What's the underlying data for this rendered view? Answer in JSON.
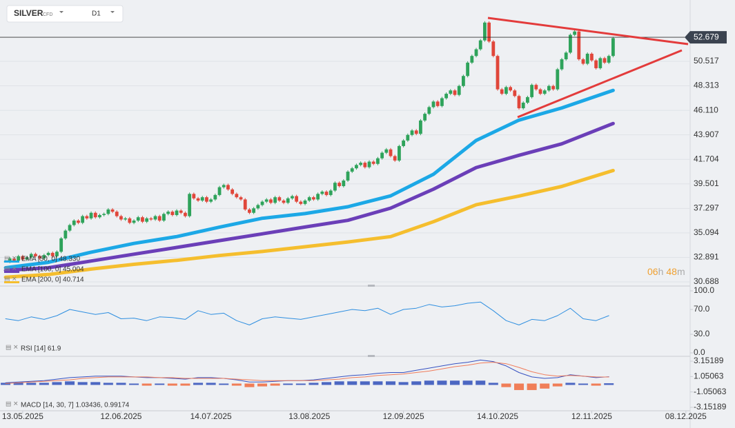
{
  "toolbar": {
    "symbol": "SILVER",
    "kind": "CFD",
    "interval": "D1"
  },
  "chart_data": [
    {
      "type": "candlestick",
      "up_color": "#2fa35b",
      "down_color": "#e0463a",
      "xlim": [
        -1.3,
        160
      ],
      "xticks": [
        {
          "value": 4,
          "label": "13.05.2025"
        },
        {
          "value": 27,
          "label": "12.06.2025"
        },
        {
          "value": 48,
          "label": "14.07.2025"
        },
        {
          "value": 71,
          "label": "13.08.2025"
        },
        {
          "value": 93,
          "label": "12.09.2025"
        },
        {
          "value": 115,
          "label": "14.10.2025"
        },
        {
          "value": 137,
          "label": "12.11.2025"
        },
        {
          "value": 159,
          "label": "08.12.2025"
        }
      ],
      "ylim": [
        30.38,
        56.03
      ],
      "yticks": [
        30.688,
        32.891,
        35.094,
        37.297,
        39.501,
        41.704,
        43.907,
        {
          "value": 46.11,
          "label": "46.110"
        },
        48.313,
        50.517
      ],
      "grid": true,
      "last_price": 52.679,
      "timer": {
        "hours": "06",
        "h": "h",
        "minutes": "48",
        "m": "m"
      },
      "close": [
        32.5,
        32.8,
        32.6,
        33.0,
        32.7,
        32.9,
        33.2,
        33.0,
        32.8,
        33.1,
        33.3,
        33.0,
        33.4,
        34.6,
        35.3,
        35.8,
        36.2,
        36.0,
        36.6,
        36.4,
        36.9,
        36.5,
        36.7,
        36.8,
        37.2,
        37.0,
        36.6,
        36.3,
        36.4,
        36.0,
        36.2,
        36.5,
        36.1,
        36.4,
        36.3,
        36.6,
        36.2,
        36.8,
        37.0,
        36.7,
        37.1,
        36.9,
        36.6,
        38.6,
        38.2,
        38.0,
        38.3,
        37.9,
        38.1,
        38.5,
        39.2,
        39.4,
        39.0,
        38.6,
        38.3,
        38.1,
        37.2,
        36.9,
        37.3,
        37.6,
        37.9,
        38.1,
        37.8,
        38.3,
        38.0,
        37.8,
        38.2,
        38.4,
        37.9,
        37.7,
        38.0,
        38.3,
        38.1,
        38.6,
        38.8,
        38.5,
        38.9,
        39.6,
        39.3,
        39.8,
        40.6,
        40.9,
        41.2,
        41.4,
        41.0,
        41.5,
        41.3,
        41.8,
        42.3,
        42.6,
        42.0,
        41.6,
        42.9,
        43.4,
        43.9,
        44.3,
        44.0,
        45.2,
        45.8,
        46.4,
        46.9,
        46.5,
        47.2,
        47.6,
        47.9,
        47.5,
        48.3,
        49.2,
        50.4,
        51.0,
        51.6,
        52.4,
        54.0,
        52.3,
        51.0,
        48.0,
        47.6,
        48.2,
        47.9,
        47.4,
        46.3,
        46.8,
        47.3,
        48.4,
        48.0,
        47.6,
        47.9,
        48.3,
        48.0,
        49.8,
        50.7,
        51.3,
        52.9,
        53.2,
        50.7,
        50.3,
        51.2,
        50.6,
        49.9,
        50.8,
        50.4,
        51.0,
        52.6
      ],
      "series": [
        {
          "name": "EMA [50, 0] 48.330",
          "color": "#1ca8e6",
          "x": [
            0,
            10,
            20,
            30,
            40,
            50,
            60,
            70,
            80,
            90,
            100,
            110,
            120,
            130,
            142
          ],
          "values": [
            31.96,
            32.45,
            33.36,
            34.15,
            34.76,
            35.61,
            36.41,
            36.83,
            37.44,
            38.42,
            40.36,
            43.41,
            45.23,
            46.33,
            47.91
          ]
        },
        {
          "name": "EMA [100, 0] 45.004",
          "color": "#6b3fb8",
          "x": [
            0,
            10,
            20,
            30,
            40,
            50,
            60,
            70,
            80,
            90,
            100,
            110,
            120,
            130,
            142
          ],
          "values": [
            31.72,
            31.96,
            32.57,
            33.18,
            33.79,
            34.4,
            35.01,
            35.62,
            36.22,
            37.32,
            39.02,
            40.97,
            42.07,
            43.1,
            44.93
          ]
        },
        {
          "name": "EMA [200, 0] 40.714",
          "color": "#f5be2e",
          "x": [
            0,
            10,
            20,
            30,
            40,
            50,
            60,
            70,
            80,
            90,
            100,
            110,
            120,
            130,
            142
          ],
          "values": [
            31.11,
            31.35,
            31.84,
            32.27,
            32.63,
            33.06,
            33.42,
            33.85,
            34.28,
            34.76,
            36.1,
            37.62,
            38.41,
            39.27,
            40.7
          ]
        }
      ]
    },
    {
      "type": "line",
      "label": "RSI [14] 61.9",
      "color": "#2d8ee0",
      "ylim": [
        0,
        100
      ],
      "yticks": [
        {
          "value": 0,
          "label": "0.0"
        },
        {
          "value": 30,
          "label": "30.0"
        },
        {
          "value": 70,
          "label": "70.0"
        },
        {
          "value": 100,
          "label": "100.0"
        }
      ],
      "x": [
        0,
        3,
        6,
        9,
        12,
        15,
        18,
        21,
        24,
        27,
        30,
        33,
        36,
        39,
        42,
        45,
        48,
        51,
        54,
        57,
        60,
        63,
        66,
        69,
        72,
        75,
        78,
        81,
        84,
        87,
        90,
        93,
        96,
        99,
        102,
        105,
        108,
        111,
        114,
        117,
        120,
        123,
        126,
        129,
        132,
        135,
        138,
        141
      ],
      "values": [
        55,
        52,
        58,
        54,
        60,
        70,
        66,
        62,
        65,
        55,
        56,
        52,
        58,
        57,
        54,
        68,
        62,
        64,
        52,
        45,
        55,
        58,
        56,
        54,
        58,
        62,
        66,
        70,
        68,
        72,
        62,
        70,
        72,
        78,
        74,
        76,
        80,
        82,
        68,
        52,
        45,
        54,
        52,
        60,
        72,
        55,
        52,
        60
      ]
    },
    {
      "type": "macd",
      "label": "MACD [14, 30, 7] 1.03436, 0.99174",
      "ylim": [
        -3.15189,
        3.15189
      ],
      "yticks": [
        -3.15189,
        -1.05063,
        1.05063,
        3.15189
      ],
      "positive_color": "#2f4fb8",
      "negative_color": "#f06a3c",
      "x": [
        0,
        3,
        6,
        9,
        12,
        15,
        18,
        21,
        24,
        27,
        30,
        33,
        36,
        39,
        42,
        45,
        48,
        51,
        54,
        57,
        60,
        63,
        66,
        69,
        72,
        75,
        78,
        81,
        84,
        87,
        90,
        93,
        96,
        99,
        102,
        105,
        108,
        111,
        114,
        117,
        120,
        123,
        126,
        129,
        132,
        135,
        138,
        141
      ],
      "series": [
        {
          "color": "#3550c0",
          "values": [
            0.2,
            0.3,
            0.4,
            0.5,
            0.7,
            0.9,
            1.0,
            1.1,
            1.1,
            1.1,
            1.0,
            0.9,
            0.9,
            0.8,
            0.7,
            0.9,
            0.9,
            0.8,
            0.6,
            0.3,
            0.3,
            0.4,
            0.5,
            0.5,
            0.6,
            0.8,
            1.0,
            1.2,
            1.3,
            1.5,
            1.6,
            1.6,
            1.9,
            2.2,
            2.5,
            2.8,
            3.0,
            3.3,
            3.1,
            2.5,
            1.6,
            1.0,
            0.8,
            0.9,
            1.3,
            1.1,
            0.9,
            1.03
          ]
        },
        {
          "color": "#f07b5a",
          "values": [
            0.1,
            0.2,
            0.3,
            0.4,
            0.5,
            0.6,
            0.8,
            0.9,
            1.0,
            1.0,
            1.0,
            1.0,
            0.9,
            0.9,
            0.8,
            0.8,
            0.8,
            0.8,
            0.7,
            0.6,
            0.5,
            0.5,
            0.5,
            0.5,
            0.5,
            0.6,
            0.7,
            0.9,
            1.0,
            1.2,
            1.3,
            1.4,
            1.6,
            1.8,
            2.1,
            2.4,
            2.6,
            2.9,
            3.0,
            2.8,
            2.3,
            1.7,
            1.3,
            1.1,
            1.2,
            1.1,
            1.0,
            0.99
          ]
        }
      ],
      "histogram": [
        0.1,
        0.1,
        0.1,
        0.1,
        0.2,
        0.3,
        0.2,
        0.2,
        0.1,
        0.1,
        0,
        -0.1,
        0,
        -0.1,
        -0.1,
        0.1,
        0.1,
        0,
        -0.1,
        -0.3,
        -0.2,
        -0.1,
        0,
        0,
        0.1,
        0.2,
        0.3,
        0.3,
        0.3,
        0.3,
        0.3,
        0.2,
        0.3,
        0.4,
        0.4,
        0.4,
        0.4,
        0.4,
        0.1,
        -0.3,
        -0.7,
        -0.7,
        -0.5,
        -0.2,
        0.1,
        0,
        -0.1,
        0.04
      ]
    }
  ]
}
